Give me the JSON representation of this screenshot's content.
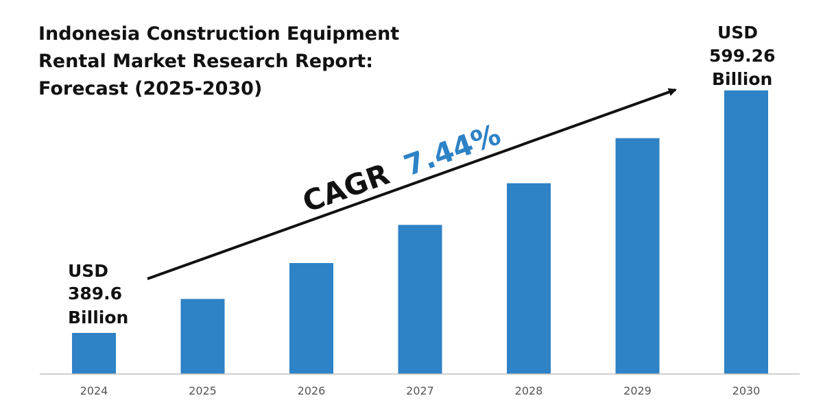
{
  "chart_data": {
    "type": "bar",
    "title": "Indonesia Construction Equipment Rental Market Research Report: Forecast (2025-2030)",
    "title_lines": [
      "Indonesia Construction Equipment",
      "Rental Market Research Report:",
      "Forecast (2025-2030)"
    ],
    "categories": [
      "2024",
      "2025",
      "2026",
      "2027",
      "2028",
      "2029",
      "2030"
    ],
    "values": [
      389.6,
      419.0,
      450.0,
      483.0,
      519.0,
      558.0,
      599.26
    ],
    "unit": "USD Billion",
    "ylim": [
      350,
      610
    ],
    "grid": false,
    "bar_color": "#2e82c6",
    "start_label": [
      "USD",
      "389.6",
      "Billion"
    ],
    "end_label": [
      "USD",
      "599.26",
      "Billion"
    ],
    "cagr": {
      "label": "CAGR",
      "value": "7.44%",
      "label_color": "#111111",
      "value_color": "#2e82c6"
    }
  }
}
